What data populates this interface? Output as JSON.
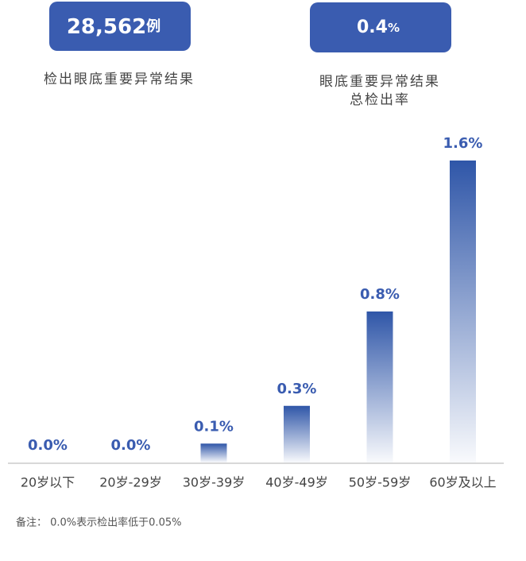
{
  "stats": [
    {
      "number": "28,562",
      "unit": "例",
      "label": [
        "检出眼底重要异常结果"
      ]
    },
    {
      "number": "0.4",
      "unit": "%",
      "label": [
        "眼底重要异常结果",
        "总检出率"
      ]
    }
  ],
  "chart_data": {
    "type": "bar",
    "categories": [
      "20岁以下",
      "20岁-29岁",
      "30岁-39岁",
      "40岁-49岁",
      "50岁-59岁",
      "60岁及以上"
    ],
    "values": [
      0.0,
      0.0,
      0.1,
      0.3,
      0.8,
      1.6
    ],
    "value_labels": [
      "0.0%",
      "0.0%",
      "0.1%",
      "0.3%",
      "0.8%",
      "1.6%"
    ],
    "color": "#2f56a8",
    "ylim": [
      0,
      1.6
    ]
  },
  "note": "备注： 0.0%表示检出率低于0.05%"
}
